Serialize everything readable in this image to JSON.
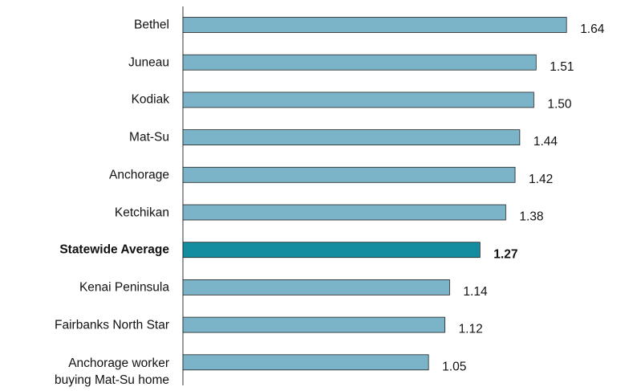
{
  "chart_data": {
    "type": "hbar",
    "categories": [
      "Bethel",
      "Juneau",
      "Kodiak",
      "Mat-Su",
      "Anchorage",
      "Ketchikan",
      "Statewide Average",
      "Kenai Peninsula",
      "Fairbanks North Star",
      "Anchorage worker\nbuying Mat-Su home"
    ],
    "values": [
      1.64,
      1.51,
      1.5,
      1.44,
      1.42,
      1.38,
      1.27,
      1.14,
      1.12,
      1.05
    ],
    "value_labels": [
      "1.64",
      "1.51",
      "1.50",
      "1.44",
      "1.42",
      "1.38",
      "1.27",
      "1.14",
      "1.12",
      "1.05"
    ],
    "colors": [
      "#7bb4c9",
      "#7bb4c9",
      "#7bb4c9",
      "#7bb4c9",
      "#7bb4c9",
      "#7bb4c9",
      "#138d9f",
      "#7bb4c9",
      "#7bb4c9",
      "#7bb4c9"
    ],
    "highlight": "Statewide Average",
    "xlim": [
      0,
      1.9
    ]
  }
}
